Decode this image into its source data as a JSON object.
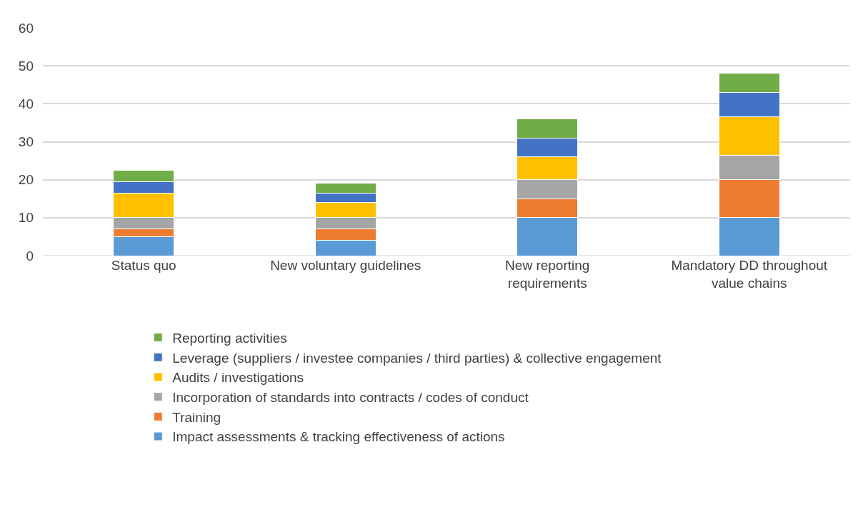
{
  "chart_data": {
    "type": "bar",
    "stacked": true,
    "categories": [
      "Status quo",
      "New voluntary guidelines",
      "New reporting requirements",
      "Mandatory DD throughout value chains"
    ],
    "series": [
      {
        "name": "Impact assessments & tracking effectiveness of actions",
        "color": "#5b9bd5",
        "values": [
          5,
          4,
          10,
          10
        ]
      },
      {
        "name": "Training",
        "color": "#ed7d31",
        "values": [
          2,
          3,
          5,
          10
        ]
      },
      {
        "name": "Incorporation of standards into contracts / codes of conduct",
        "color": "#a5a5a5",
        "values": [
          3,
          3,
          5,
          6.5
        ]
      },
      {
        "name": "Audits / investigations",
        "color": "#ffc000",
        "values": [
          6.5,
          4,
          6,
          10
        ]
      },
      {
        "name": "Leverage (suppliers / investee companies / third parties) & collective engagement",
        "color": "#4472c4",
        "values": [
          3,
          2.5,
          5,
          6.5
        ]
      },
      {
        "name": "Reporting activities",
        "color": "#70ad47",
        "values": [
          3,
          2.5,
          5,
          5
        ]
      }
    ],
    "ylim": [
      0,
      60
    ],
    "yticks": [
      0,
      10,
      20,
      30,
      40,
      50,
      60
    ],
    "grid": "y",
    "legend": "bottom"
  }
}
